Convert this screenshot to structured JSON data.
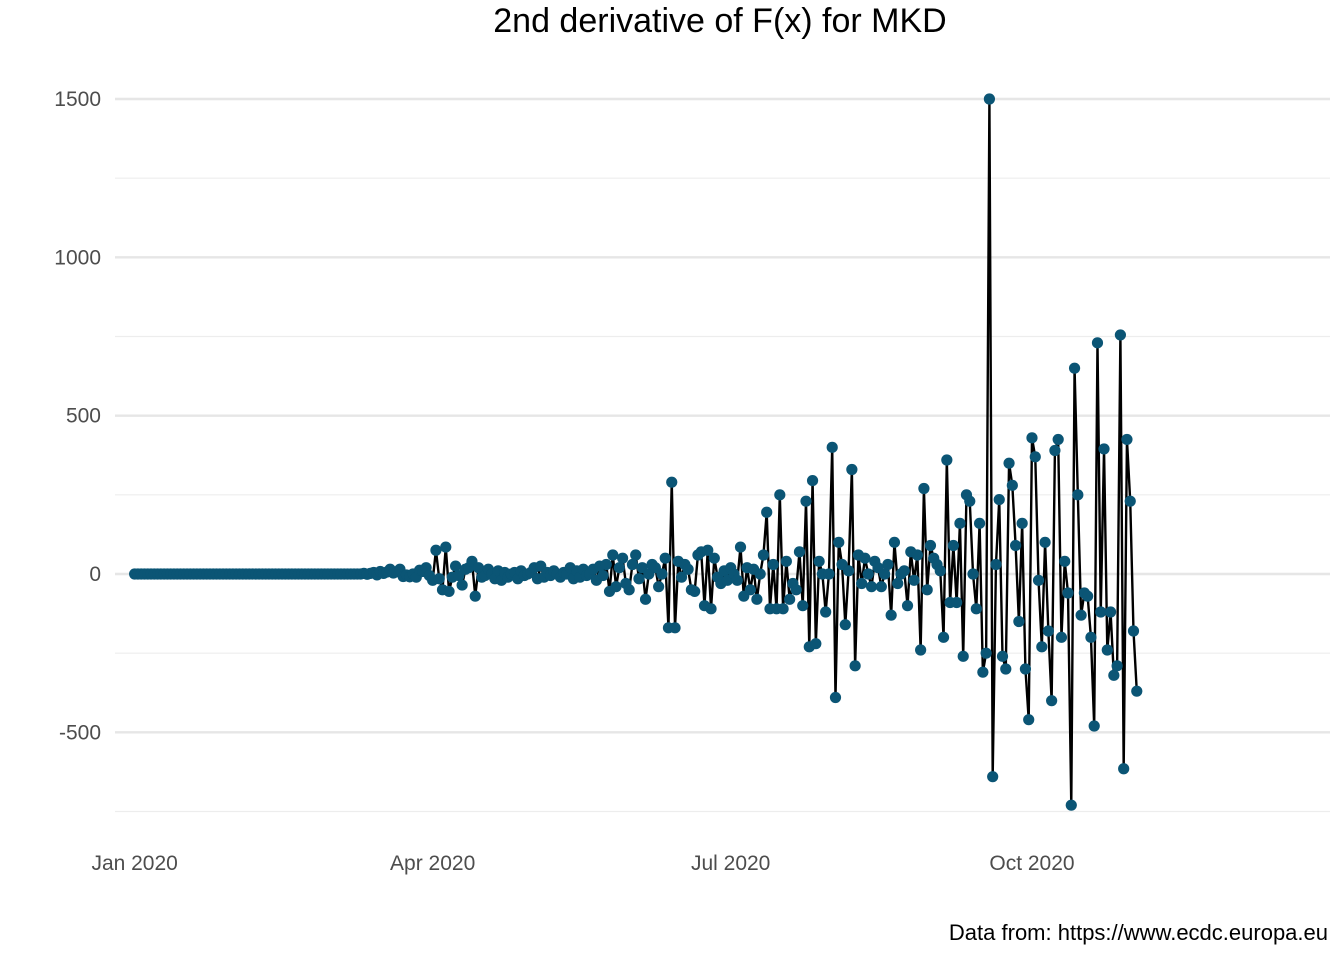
{
  "caption": "Data from: https://www.ecdc.europa.eu",
  "chart_data": {
    "type": "line",
    "title": "2nd derivative of F(x) for MKD",
    "xlabel": "",
    "ylabel": "",
    "x_axis": {
      "type": "date",
      "range": [
        "2019-12-26",
        "2020-12-31"
      ],
      "ticks": [
        {
          "date": "2020-01-01",
          "label": "Jan 2020"
        },
        {
          "date": "2020-04-01",
          "label": "Apr 2020"
        },
        {
          "date": "2020-07-01",
          "label": "Jul 2020"
        },
        {
          "date": "2020-10-01",
          "label": "Oct 2020"
        }
      ]
    },
    "y_axis": {
      "range": [
        -750,
        1500
      ],
      "ticks": [
        1500,
        1000,
        500,
        0,
        -500
      ],
      "tick_labels": [
        "1500",
        "1000",
        "500",
        "0",
        "-500"
      ]
    },
    "grid": true,
    "legend": "none",
    "colors": {
      "line": "#000000",
      "points": "#0b5575",
      "grid": "#e6e6e6"
    },
    "series": [
      {
        "x_start": "2020-01-01",
        "step_days": 1,
        "values": [
          0,
          0,
          0,
          0,
          0,
          0,
          0,
          0,
          0,
          0,
          0,
          0,
          0,
          0,
          0,
          0,
          0,
          0,
          0,
          0,
          0,
          0,
          0,
          0,
          0,
          0,
          0,
          0,
          0,
          0,
          0,
          0,
          0,
          0,
          0,
          0,
          0,
          0,
          0,
          0,
          0,
          0,
          0,
          0,
          0,
          0,
          0,
          0,
          0,
          0,
          0,
          0,
          0,
          0,
          0,
          0,
          0,
          0,
          0,
          0,
          0,
          0,
          0,
          0,
          0,
          0,
          0,
          0,
          0,
          0,
          2,
          -1,
          2,
          5,
          -3,
          8,
          2,
          6,
          15,
          3,
          7,
          15,
          -8,
          -3,
          -9,
          0,
          -10,
          12,
          8,
          20,
          -5,
          -20,
          75,
          -15,
          -50,
          85,
          -55,
          -10,
          25,
          -5,
          -35,
          15,
          20,
          40,
          -70,
          20,
          -10,
          -5,
          15,
          0,
          -15,
          10,
          -20,
          5,
          -10,
          0,
          5,
          -15,
          10,
          -5,
          0,
          5,
          20,
          -15,
          25,
          -10,
          5,
          -5,
          10,
          0,
          -10,
          5,
          0,
          20,
          -15,
          10,
          -10,
          15,
          -5,
          0,
          15,
          -20,
          25,
          -5,
          30,
          -55,
          60,
          -40,
          20,
          50,
          -30,
          -50,
          30,
          60,
          -15,
          20,
          -80,
          0,
          30,
          20,
          -40,
          0,
          50,
          -170,
          290,
          -170,
          40,
          -10,
          30,
          15,
          -50,
          -55,
          60,
          70,
          -100,
          75,
          -110,
          50,
          -10,
          -30,
          10,
          -20,
          20,
          0,
          -20,
          85,
          -70,
          20,
          -50,
          15,
          -80,
          0,
          60,
          195,
          -110,
          30,
          -110,
          250,
          -110,
          40,
          -80,
          -30,
          -50,
          70,
          -100,
          230,
          -230,
          295,
          -220,
          40,
          0,
          -120,
          0,
          400,
          -390,
          100,
          30,
          -160,
          10,
          330,
          -290,
          60,
          -30,
          50,
          0,
          -40,
          40,
          20,
          -40,
          0,
          30,
          -130,
          100,
          -30,
          0,
          10,
          -100,
          70,
          -20,
          60,
          -240,
          270,
          -50,
          90,
          50,
          30,
          10,
          -200,
          360,
          -90,
          90,
          -90,
          160,
          -260,
          250,
          230,
          0,
          -110,
          160,
          -310,
          -250,
          1500,
          -640,
          30,
          235,
          -260,
          -300,
          350,
          280,
          90,
          -150,
          160,
          -300,
          -460,
          430,
          370,
          -20,
          -230,
          100,
          -180,
          -400,
          390,
          425,
          -200,
          40,
          -60,
          -730,
          650,
          250,
          -130,
          -60,
          -70,
          -200,
          -480,
          730,
          -120,
          395,
          -240,
          -120,
          -320,
          -290,
          755,
          -615,
          425,
          230,
          -180,
          -370
        ]
      }
    ]
  }
}
